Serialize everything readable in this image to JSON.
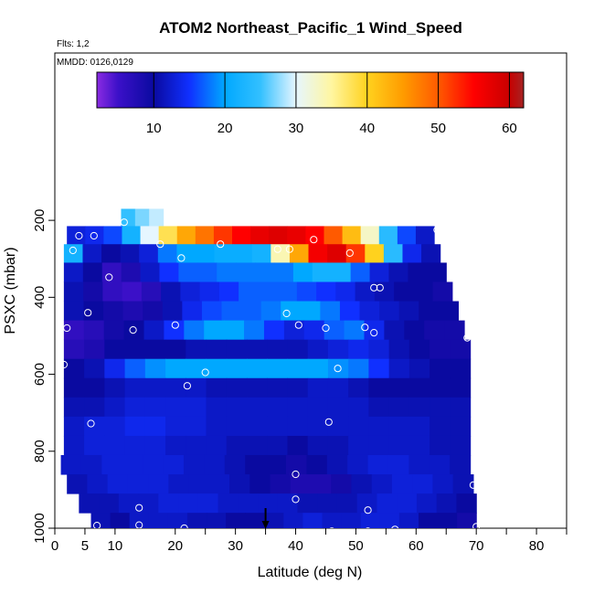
{
  "chart_data": {
    "type": "heatmap",
    "title": "ATOM2 Northeast_Pacific_1 Wind_Speed",
    "subtitle_lines": [
      "Flts: 1,2",
      "MMDD: 0126,0129"
    ],
    "xlabel": "Latitude (deg N)",
    "ylabel": "PSXC (mbar)",
    "xlim": [
      0,
      85
    ],
    "ylim": [
      1000,
      100
    ],
    "x_ticks": [
      0,
      5,
      10,
      20,
      30,
      40,
      50,
      60,
      70,
      80
    ],
    "y_ticks": [
      200,
      400,
      600,
      800,
      1000
    ],
    "colorbar": {
      "range": [
        2,
        62
      ],
      "ticks": [
        10,
        20,
        30,
        40,
        50,
        60
      ],
      "stops": [
        {
          "v": 2,
          "c": "#8a2be2"
        },
        {
          "v": 5,
          "c": "#3b10c8"
        },
        {
          "v": 10,
          "c": "#0a0aa0"
        },
        {
          "v": 15,
          "c": "#1030ff"
        },
        {
          "v": 20,
          "c": "#00a8ff"
        },
        {
          "v": 25,
          "c": "#33c0ff"
        },
        {
          "v": 30,
          "c": "#e6f6ff"
        },
        {
          "v": 35,
          "c": "#fff6a0"
        },
        {
          "v": 40,
          "c": "#ffd21e"
        },
        {
          "v": 45,
          "c": "#ff9c00"
        },
        {
          "v": 50,
          "c": "#ff5a00"
        },
        {
          "v": 55,
          "c": "#ff0000"
        },
        {
          "v": 60,
          "c": "#c80000"
        },
        {
          "v": 62,
          "c": "#a52323"
        }
      ]
    },
    "bands": [
      {
        "p0": 170,
        "p1": 215,
        "lat": [
          11,
          18
        ],
        "vals": [
          25,
          27,
          29
        ]
      },
      {
        "p0": 215,
        "p1": 262,
        "lat": [
          2,
          63
        ],
        "vals": [
          13,
          14,
          16,
          22,
          30,
          38,
          44,
          48,
          52,
          55,
          57,
          58,
          57,
          55,
          50,
          42,
          33,
          24,
          16,
          12
        ]
      },
      {
        "p0": 262,
        "p1": 310,
        "lat": [
          1.5,
          64
        ],
        "vals": [
          22,
          12,
          10,
          11,
          13,
          18,
          20,
          20,
          21,
          21,
          22,
          34,
          44,
          56,
          58,
          52,
          40,
          24,
          14,
          11
        ]
      },
      {
        "p0": 310,
        "p1": 360,
        "lat": [
          1.5,
          65
        ],
        "vals": [
          12,
          10,
          6,
          8,
          12,
          15,
          17,
          17,
          18,
          18,
          18,
          18,
          20,
          22,
          22,
          17,
          13,
          11,
          10,
          10
        ]
      },
      {
        "p0": 360,
        "p1": 410,
        "lat": [
          1.5,
          66
        ],
        "vals": [
          11,
          9,
          6,
          5,
          7,
          11,
          13,
          14,
          15,
          17,
          17,
          17,
          16,
          15,
          14,
          12,
          11,
          10,
          10,
          9
        ]
      },
      {
        "p0": 410,
        "p1": 460,
        "lat": [
          1.5,
          67
        ],
        "vals": [
          11,
          10,
          9,
          8,
          9,
          11,
          14,
          16,
          17,
          17,
          18,
          20,
          20,
          18,
          15,
          13,
          12,
          11,
          10,
          10
        ]
      },
      {
        "p0": 460,
        "p1": 510,
        "lat": [
          1.5,
          68
        ],
        "vals": [
          6,
          7,
          9,
          10,
          12,
          15,
          18,
          20,
          20,
          18,
          15,
          13,
          14,
          17,
          18,
          14,
          11,
          10,
          9,
          9
        ]
      },
      {
        "p0": 510,
        "p1": 560,
        "lat": [
          1.5,
          69
        ],
        "vals": [
          7,
          8,
          10,
          10,
          10,
          10,
          11,
          11,
          11,
          11,
          11,
          11,
          12,
          13,
          14,
          13,
          11,
          10,
          9,
          9
        ]
      },
      {
        "p0": 560,
        "p1": 610,
        "lat": [
          1.5,
          69
        ],
        "vals": [
          10,
          11,
          14,
          17,
          19,
          20,
          20,
          20,
          20,
          20,
          20,
          20,
          20,
          19,
          18,
          15,
          12,
          11,
          10,
          10
        ]
      },
      {
        "p0": 610,
        "p1": 660,
        "lat": [
          1.5,
          69
        ],
        "vals": [
          10,
          10,
          11,
          12,
          12,
          12,
          12,
          11,
          11,
          11,
          11,
          11,
          12,
          12,
          11,
          10,
          10,
          10,
          10,
          10
        ]
      },
      {
        "p0": 660,
        "p1": 710,
        "lat": [
          1.5,
          69
        ],
        "vals": [
          11,
          11,
          12,
          13,
          13,
          13,
          13,
          12,
          12,
          12,
          12,
          12,
          12,
          12,
          12,
          11,
          11,
          11,
          11,
          11
        ]
      },
      {
        "p0": 710,
        "p1": 760,
        "lat": [
          1.5,
          69
        ],
        "vals": [
          12,
          13,
          13,
          14,
          14,
          13,
          13,
          12,
          12,
          12,
          12,
          12,
          12,
          12,
          12,
          12,
          12,
          12,
          11,
          11
        ]
      },
      {
        "p0": 760,
        "p1": 810,
        "lat": [
          1.5,
          69
        ],
        "vals": [
          12,
          13,
          13,
          13,
          13,
          12,
          12,
          12,
          11,
          11,
          11,
          10,
          11,
          11,
          12,
          12,
          12,
          12,
          11,
          11
        ]
      },
      {
        "p0": 810,
        "p1": 860,
        "lat": [
          1,
          69
        ],
        "vals": [
          12,
          12,
          13,
          13,
          13,
          13,
          12,
          12,
          11,
          10,
          10,
          9,
          10,
          11,
          12,
          13,
          13,
          12,
          12,
          11
        ]
      },
      {
        "p0": 860,
        "p1": 910,
        "lat": [
          2,
          69.5
        ],
        "vals": [
          11,
          12,
          13,
          13,
          13,
          12,
          12,
          12,
          11,
          10,
          9,
          8,
          8,
          9,
          11,
          12,
          13,
          13,
          12,
          11
        ]
      },
      {
        "p0": 910,
        "p1": 960,
        "lat": [
          4,
          70
        ],
        "vals": [
          11,
          11,
          12,
          12,
          13,
          13,
          13,
          12,
          12,
          12,
          12,
          11,
          11,
          11,
          12,
          13,
          13,
          12,
          11,
          10
        ]
      },
      {
        "p0": 960,
        "p1": 1000,
        "lat": [
          6,
          70
        ],
        "vals": [
          11,
          10,
          12,
          12,
          12,
          11,
          11,
          10,
          10,
          11,
          12,
          13,
          12,
          12,
          13,
          13,
          12,
          10,
          10,
          9
        ]
      }
    ],
    "points": [
      [
        11.5,
        205
      ],
      [
        4,
        240
      ],
      [
        6.5,
        240
      ],
      [
        17.5,
        262
      ],
      [
        27.5,
        262
      ],
      [
        21,
        298
      ],
      [
        37,
        275
      ],
      [
        39,
        275
      ],
      [
        43,
        250
      ],
      [
        49,
        285
      ],
      [
        63.5,
        225
      ],
      [
        3,
        278
      ],
      [
        9,
        348
      ],
      [
        53,
        375
      ],
      [
        54,
        375
      ],
      [
        5.5,
        440
      ],
      [
        38.5,
        442
      ],
      [
        2,
        480
      ],
      [
        13,
        485
      ],
      [
        20,
        472
      ],
      [
        40.5,
        472
      ],
      [
        45,
        480
      ],
      [
        51.5,
        478
      ],
      [
        53,
        492
      ],
      [
        68.5,
        505
      ],
      [
        1.5,
        575
      ],
      [
        25,
        595
      ],
      [
        47,
        585
      ],
      [
        22,
        630
      ],
      [
        6,
        728
      ],
      [
        45.5,
        724
      ],
      [
        40,
        860
      ],
      [
        69.5,
        888
      ],
      [
        40,
        925
      ],
      [
        14,
        947
      ],
      [
        52,
        953
      ],
      [
        7,
        993
      ],
      [
        14,
        992
      ],
      [
        21.5,
        1000
      ],
      [
        46,
        1008
      ],
      [
        52,
        1008
      ],
      [
        56.5,
        1003
      ],
      [
        70,
        996
      ]
    ],
    "arrow": {
      "lat": 35
    }
  }
}
